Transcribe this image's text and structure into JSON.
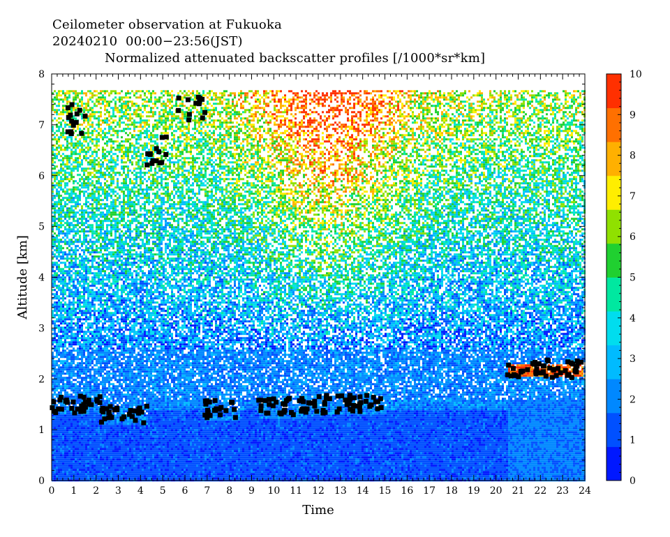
{
  "header": {
    "line1": "Ceilometer observation at Fukuoka",
    "line2": "20240210  00:00−23:56(JST)",
    "line3": "Normalized attenuated backscatter profiles [/1000*sr*km]"
  },
  "chart_data": {
    "type": "heatmap",
    "xlabel": "Time",
    "ylabel": "Altitude [km]",
    "xlim": [
      0,
      24
    ],
    "ylim": [
      0,
      8
    ],
    "x_ticks": [
      "0",
      "1",
      "2",
      "3",
      "4",
      "5",
      "6",
      "7",
      "8",
      "9",
      "10",
      "11",
      "12",
      "13",
      "14",
      "15",
      "16",
      "17",
      "18",
      "19",
      "20",
      "21",
      "22",
      "23",
      "24"
    ],
    "y_ticks": [
      "0",
      "1",
      "2",
      "3",
      "4",
      "5",
      "6",
      "7",
      "8"
    ],
    "data_top_altitude": 7.68,
    "colorbar": {
      "min": 0,
      "max": 10,
      "ticks": [
        "0",
        "1",
        "2",
        "3",
        "4",
        "5",
        "6",
        "7",
        "8",
        "9",
        "10"
      ],
      "colors": [
        "#0018ff",
        "#0050ff",
        "#0088ff",
        "#00bbff",
        "#00ddee",
        "#00e8a0",
        "#20d030",
        "#90e000",
        "#ffee00",
        "#ffb000",
        "#ff7000",
        "#ff3000"
      ]
    },
    "cloud_marker_color": "#000000",
    "cloud_base_segments": [
      {
        "t_start": 0.0,
        "t_end": 2.2,
        "altitude": 1.5
      },
      {
        "t_start": 2.2,
        "t_end": 4.3,
        "altitude": 1.3
      },
      {
        "t_start": 6.8,
        "t_end": 8.4,
        "altitude": 1.4
      },
      {
        "t_start": 9.3,
        "t_end": 11.8,
        "altitude": 1.45
      },
      {
        "t_start": 11.8,
        "t_end": 15.0,
        "altitude": 1.5
      },
      {
        "t_start": 20.5,
        "t_end": 23.9,
        "altitude": 2.2
      }
    ],
    "cloud_high_clusters": [
      {
        "t_center": 6.3,
        "altitude": 7.3
      },
      {
        "t_center": 1.2,
        "altitude": 7.1
      },
      {
        "t_center": 4.7,
        "altitude": 6.5
      }
    ]
  }
}
